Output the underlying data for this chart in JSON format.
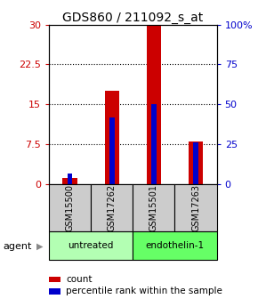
{
  "title": "GDS860 / 211092_s_at",
  "samples": [
    "GSM15500",
    "GSM17262",
    "GSM15501",
    "GSM17263"
  ],
  "counts": [
    1.2,
    17.5,
    30.0,
    8.0
  ],
  "percentiles": [
    6.5,
    42.0,
    50.0,
    26.0
  ],
  "ylim_left": [
    0,
    30
  ],
  "ylim_right": [
    0,
    100
  ],
  "yticks_left": [
    0,
    7.5,
    15,
    22.5,
    30
  ],
  "yticks_right": [
    0,
    25,
    50,
    75,
    100
  ],
  "ytick_labels_left": [
    "0",
    "7.5",
    "15",
    "22.5",
    "30"
  ],
  "ytick_labels_right": [
    "0",
    "25",
    "50",
    "75",
    "100%"
  ],
  "groups": [
    {
      "label": "untreated",
      "indices": [
        0,
        1
      ],
      "color": "#b3ffb3"
    },
    {
      "label": "endothelin-1",
      "indices": [
        2,
        3
      ],
      "color": "#66ff66"
    }
  ],
  "bar_color": "#cc0000",
  "percentile_color": "#0000cc",
  "bar_width": 0.35,
  "pct_bar_width": 0.12,
  "grid_color": "#000000",
  "sample_box_color": "#cccccc",
  "agent_label": "agent",
  "legend_count_label": "count",
  "legend_percentile_label": "percentile rank within the sample",
  "title_fontsize": 10,
  "tick_fontsize": 8
}
